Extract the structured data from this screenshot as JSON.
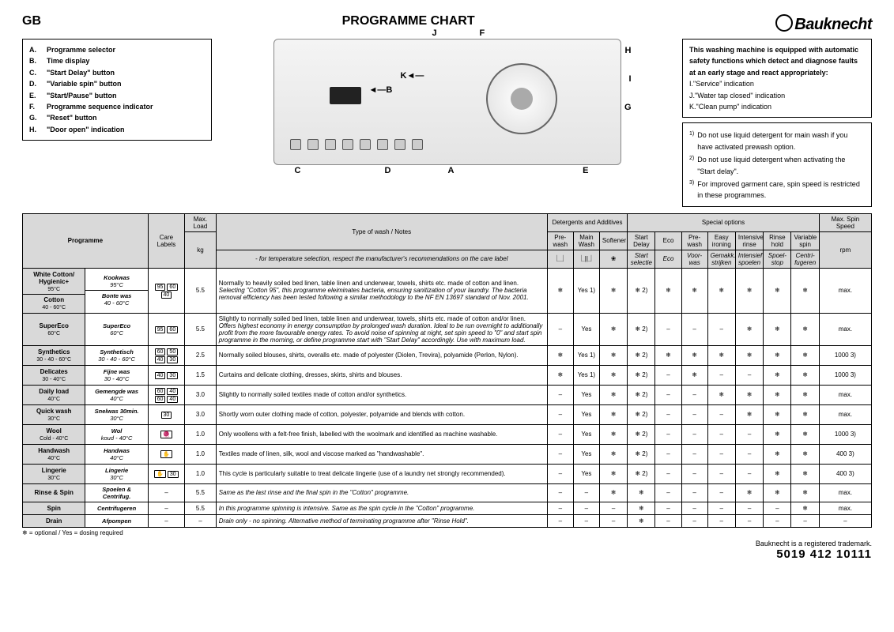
{
  "header": {
    "gb": "GB",
    "title": "PROGRAMME CHART",
    "brand": "Bauknecht"
  },
  "legend": [
    {
      "l": "A.",
      "t": "Programme selector"
    },
    {
      "l": "B.",
      "t": "Time display"
    },
    {
      "l": "C.",
      "t": "\"Start Delay\" button"
    },
    {
      "l": "D.",
      "t": "\"Variable spin\" button"
    },
    {
      "l": "E.",
      "t": "\"Start/Pause\" button"
    },
    {
      "l": "F.",
      "t": "Programme sequence indicator"
    },
    {
      "l": "G.",
      "t": "\"Reset\" button"
    },
    {
      "l": "H.",
      "t": "\"Door open\" indication"
    }
  ],
  "rbox1": {
    "intro": "This washing machine is equipped with automatic safety functions which detect and diagnose faults at an early stage and react appropriately:",
    "items": [
      {
        "l": "I.",
        "t": "\"Service\" indication"
      },
      {
        "l": "J.",
        "t": "\"Water tap closed\" indication"
      },
      {
        "l": "K.",
        "t": "\"Clean pump\" indication"
      }
    ]
  },
  "rbox2": [
    {
      "n": "1)",
      "t": "Do not use liquid detergent for main wash if you have activated prewash option."
    },
    {
      "n": "2)",
      "t": "Do not use liquid detergent when activating the \"Start delay\"."
    },
    {
      "n": "3)",
      "t": "For improved garment care, spin speed is restricted in these programmes."
    }
  ],
  "callouts": [
    "A",
    "B",
    "C",
    "D",
    "E",
    "F",
    "G",
    "H",
    "I",
    "J",
    "K"
  ],
  "th": {
    "programme": "Programme",
    "care": "Care Labels",
    "maxload": "Max. Load",
    "kg": "kg",
    "type": "Type of wash / Notes",
    "typenote": "- for temperature selection, respect the manufacturer's recommendations on the care label",
    "det": "Detergents and Additives",
    "pre": "Pre-wash",
    "main": "Main Wash",
    "soft": "Softener",
    "spec": "Special options",
    "sd": "Start Delay",
    "sd2": "Start selectie",
    "eco": "Eco",
    "eco2": "Eco",
    "pw": "Pre-wash",
    "pw2": "Voor-was",
    "ei": "Easy ironing",
    "ei2": "Gemakk. strijken",
    "ir": "Intensive rinse",
    "ir2": "Intensief spoelen",
    "rh": "Rinse hold",
    "rh2": "Spoel-stop",
    "vs": "Variable spin",
    "vs2": "Centri-fugeren",
    "mss": "Max. Spin Speed",
    "rpm": "rpm"
  },
  "rows": [
    {
      "p": "White Cotton/ Hygienic+",
      "pt": "95°C",
      "c": "Kookwas",
      "ct": "95°C",
      "ci": [
        "95",
        "60",
        "40"
      ],
      "load": "5.5",
      "note": "Normally to heavily soiled bed linen, table linen and underwear, towels, shirts etc. made of cotton and linen.",
      "note2": "Selecting \"Cotton 95\", this programme eleiminates bacteria, ensuring sanitization of your laundry. The bacteria removal efficiency has been tested following a similar methodology to the NF EN 13697 standard of Nov. 2001.",
      "d": [
        "❄",
        "Yes 1)",
        "❄"
      ],
      "s": [
        "❄ 2)",
        "❄",
        "❄",
        "❄",
        "❄",
        "❄",
        "❄"
      ],
      "spin": "max."
    },
    {
      "p": "Cotton",
      "pt": "40 - 60°C",
      "c": "Bonte was",
      "ct": "40 - 60°C",
      "merge": true
    },
    {
      "p": "SuperEco",
      "pt": "60°C",
      "c": "SuperEco",
      "ct": "60°C",
      "ci": [
        "95",
        "60"
      ],
      "load": "5.5",
      "note": "Slightly to normally soiled bed linen, table linen and underwear, towels, shirts etc. made of cotton and/or linen.",
      "note2": "Offers highest economy in energy consumption by prolonged wash duration. Ideal to be run overnight to additionally profit from the more favourable energy rates. To avoid noise of spinning at night, set spin speed to \"0\" and start spin programme in the morning, or define programme start with \"Start Delay\" accordingly. Use with maximum load.",
      "d": [
        "–",
        "Yes",
        "❄"
      ],
      "s": [
        "❄ 2)",
        "–",
        "–",
        "–",
        "❄",
        "❄",
        "❄"
      ],
      "spin": "max."
    },
    {
      "p": "Synthetics",
      "pt": "30 - 40 - 60°C",
      "c": "Synthetisch",
      "ct": "30 - 40 - 60°C",
      "ci": [
        "60",
        "50",
        "40",
        "30"
      ],
      "load": "2.5",
      "note": "Normally soiled blouses, shirts, overalls etc. made of polyester (Diolen, Trevira), polyamide (Perlon, Nylon).",
      "d": [
        "❄",
        "Yes 1)",
        "❄"
      ],
      "s": [
        "❄ 2)",
        "❄",
        "❄",
        "❄",
        "❄",
        "❄",
        "❄"
      ],
      "spin": "1000 3)"
    },
    {
      "p": "Delicates",
      "pt": "30 - 40°C",
      "c": "Fijne was",
      "ct": "30 - 40°C",
      "ci": [
        "40",
        "30"
      ],
      "load": "1.5",
      "note": "Curtains and delicate clothing, dresses, skirts, shirts and blouses.",
      "d": [
        "❄",
        "Yes 1)",
        "❄"
      ],
      "s": [
        "❄ 2)",
        "–",
        "❄",
        "–",
        "–",
        "❄",
        "❄"
      ],
      "spin": "1000 3)"
    },
    {
      "p": "Daily load",
      "pt": "40°C",
      "c": "Gemengde was",
      "ct": "40°C",
      "ci": [
        "60",
        "40",
        "60",
        "40"
      ],
      "load": "3.0",
      "note": "Slightly to normally soiled textiles made of cotton and/or synthetics.",
      "d": [
        "–",
        "Yes",
        "❄"
      ],
      "s": [
        "❄ 2)",
        "–",
        "–",
        "❄",
        "❄",
        "❄",
        "❄"
      ],
      "spin": "max."
    },
    {
      "p": "Quick wash",
      "pt": "30°C",
      "c": "Snelwas 30min.",
      "ct": "30°C",
      "ci": [
        "30"
      ],
      "load": "3.0",
      "note": "Shortly worn outer clothing made of cotton, polyester, polyamide and blends with cotton.",
      "d": [
        "–",
        "Yes",
        "❄"
      ],
      "s": [
        "❄ 2)",
        "–",
        "–",
        "–",
        "❄",
        "❄",
        "❄"
      ],
      "spin": "max."
    },
    {
      "p": "Wool",
      "pt": "Cold - 40°C",
      "c": "Wol",
      "ct": "koud - 40°C",
      "ci": [
        "🧶"
      ],
      "load": "1.0",
      "note": "Only woollens with a felt-free finish, labelled with the woolmark and identified as machine washable.",
      "d": [
        "–",
        "Yes",
        "❄"
      ],
      "s": [
        "❄ 2)",
        "–",
        "–",
        "–",
        "–",
        "❄",
        "❄"
      ],
      "spin": "1000 3)"
    },
    {
      "p": "Handwash",
      "pt": "40°C",
      "c": "Handwas",
      "ct": "40°C",
      "ci": [
        "✋"
      ],
      "load": "1.0",
      "note": "Textiles made of linen, silk, wool and viscose marked as \"handwashable\".",
      "d": [
        "–",
        "Yes",
        "❄"
      ],
      "s": [
        "❄ 2)",
        "–",
        "–",
        "–",
        "–",
        "❄",
        "❄"
      ],
      "spin": "400 3)"
    },
    {
      "p": "Lingerie",
      "pt": "30°C",
      "c": "Lingerie",
      "ct": "30°C",
      "ci": [
        "✋",
        "30"
      ],
      "load": "1.0",
      "note": "This cycle is particularly suitable to treat delicate lingerie (use of a laundry net strongly recommended).",
      "d": [
        "–",
        "Yes",
        "❄"
      ],
      "s": [
        "❄ 2)",
        "–",
        "–",
        "–",
        "–",
        "❄",
        "❄"
      ],
      "spin": "400 3)"
    },
    {
      "p": "Rinse & Spin",
      "pt": "",
      "c": "Spoelen & Centrifug.",
      "ct": "",
      "ci": [],
      "load": "5.5",
      "carena": "–",
      "note": "Same as the last rinse and the final spin in the \"Cotton\" programme.",
      "it": true,
      "d": [
        "–",
        "–",
        "❄"
      ],
      "s": [
        "❄",
        "–",
        "–",
        "–",
        "❄",
        "❄",
        "❄"
      ],
      "spin": "max."
    },
    {
      "p": "Spin",
      "pt": "",
      "c": "Centrifugeren",
      "ct": "",
      "ci": [],
      "load": "5.5",
      "carena": "–",
      "note": "In this programme spinning is intensive. Same as the spin cycle in the \"Cotton\" programme.",
      "it": true,
      "d": [
        "–",
        "–",
        "–"
      ],
      "s": [
        "❄",
        "–",
        "–",
        "–",
        "–",
        "–",
        "❄"
      ],
      "spin": "max."
    },
    {
      "p": "Drain",
      "pt": "",
      "c": "Afpompen",
      "ct": "",
      "ci": [],
      "load": "–",
      "carena": "–",
      "note": "Drain only - no spinning. Alternative method of terminating programme after \"Rinse Hold\".",
      "it": true,
      "d": [
        "–",
        "–",
        "–"
      ],
      "s": [
        "❄",
        "–",
        "–",
        "–",
        "–",
        "–",
        "–"
      ],
      "spin": "–"
    }
  ],
  "endnote": "❄ = optional / Yes = dosing required",
  "footer": {
    "tm": "Bauknecht is a registered trademark.",
    "pn": "5019 412 10111"
  }
}
